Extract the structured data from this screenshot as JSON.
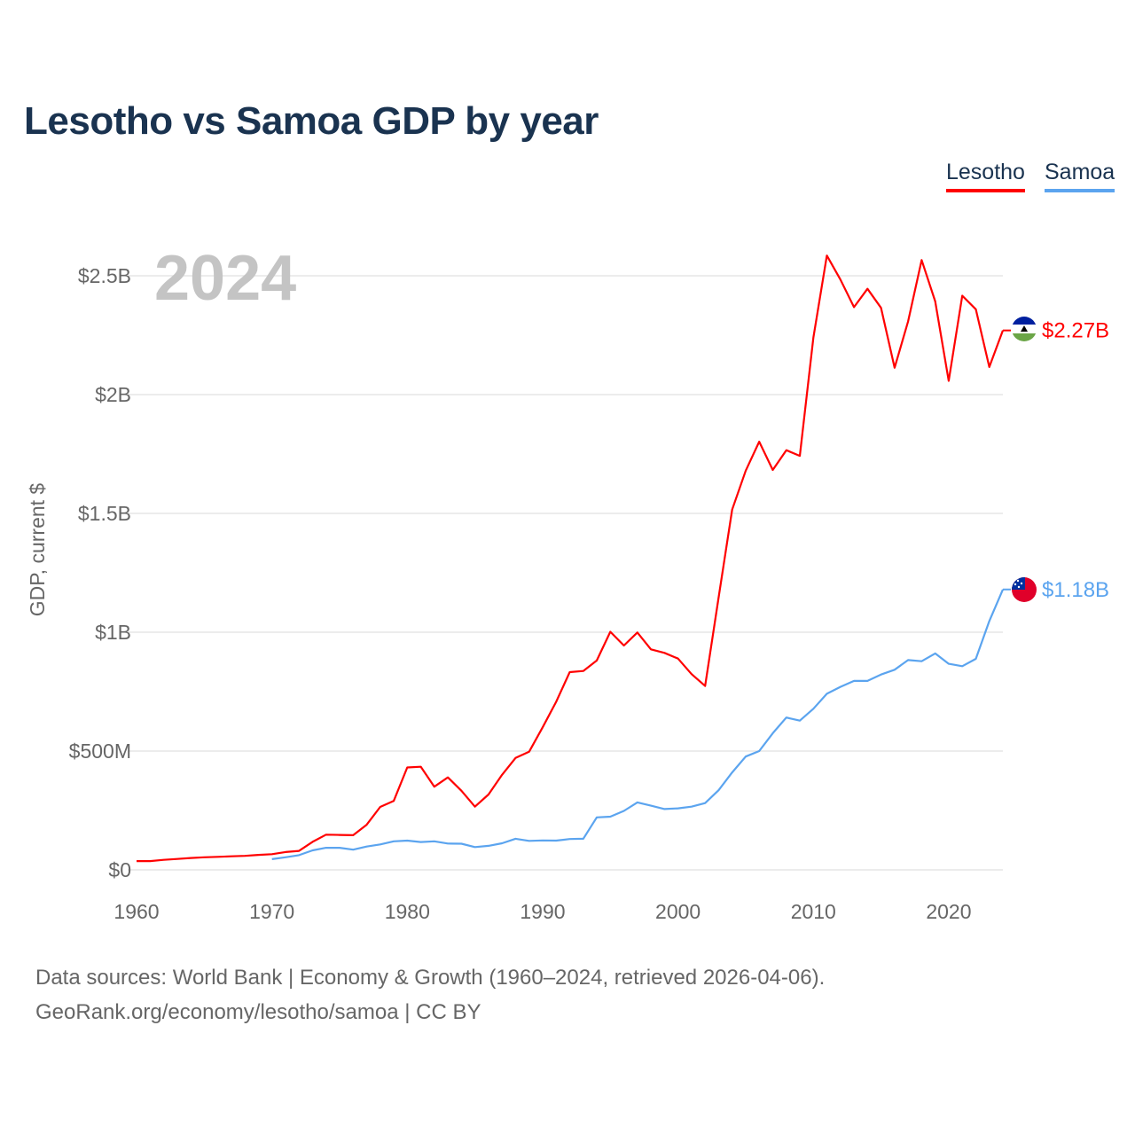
{
  "chart_data": {
    "type": "line",
    "title": "Lesotho vs Samoa GDP by year",
    "ylabel": "GDP, current $",
    "xlabel": "",
    "ylim": [
      0,
      2.5
    ],
    "xlim": [
      1960,
      2024
    ],
    "grid": true,
    "legend_position": "top-right",
    "year_overlay": "2024",
    "y_ticks": [
      {
        "v": 0,
        "label": "$0"
      },
      {
        "v": 0.5,
        "label": "$500M"
      },
      {
        "v": 1,
        "label": "$1B"
      },
      {
        "v": 1.5,
        "label": "$1.5B"
      },
      {
        "v": 2,
        "label": "$2B"
      },
      {
        "v": 2.5,
        "label": "$2.5B"
      }
    ],
    "x_ticks": [
      {
        "v": 1960,
        "label": "1960"
      },
      {
        "v": 1970,
        "label": "1970"
      },
      {
        "v": 1980,
        "label": "1980"
      },
      {
        "v": 1990,
        "label": "1990"
      },
      {
        "v": 2000,
        "label": "2000"
      },
      {
        "v": 2010,
        "label": "2010"
      },
      {
        "v": 2020,
        "label": "2020"
      }
    ],
    "units": "billions USD",
    "series": [
      {
        "name": "Lesotho",
        "color": "#ff0000",
        "end_label": "$2.27B",
        "start_year": 1960,
        "values": [
          0.037,
          0.037,
          0.042,
          0.046,
          0.05,
          0.053,
          0.055,
          0.057,
          0.059,
          0.063,
          0.066,
          0.075,
          0.08,
          0.118,
          0.148,
          0.147,
          0.146,
          0.19,
          0.265,
          0.29,
          0.431,
          0.434,
          0.35,
          0.389,
          0.333,
          0.266,
          0.317,
          0.4,
          0.471,
          0.497,
          0.6,
          0.707,
          0.832,
          0.837,
          0.881,
          1.002,
          0.944,
          0.999,
          0.928,
          0.913,
          0.889,
          0.824,
          0.774,
          1.146,
          1.516,
          1.68,
          1.802,
          1.683,
          1.766,
          1.742,
          2.24,
          2.585,
          2.484,
          2.368,
          2.445,
          2.365,
          2.113,
          2.308,
          2.566,
          2.392,
          2.058,
          2.416,
          2.359,
          2.116,
          2.27
        ]
      },
      {
        "name": "Samoa",
        "color": "#5ba4ef",
        "end_label": "$1.18B",
        "start_year": 1970,
        "values": [
          0.045,
          0.053,
          0.062,
          0.082,
          0.093,
          0.093,
          0.085,
          0.098,
          0.107,
          0.12,
          0.123,
          0.117,
          0.12,
          0.111,
          0.11,
          0.096,
          0.101,
          0.112,
          0.131,
          0.122,
          0.124,
          0.123,
          0.13,
          0.131,
          0.221,
          0.224,
          0.248,
          0.284,
          0.27,
          0.256,
          0.259,
          0.266,
          0.281,
          0.335,
          0.41,
          0.477,
          0.5,
          0.575,
          0.641,
          0.628,
          0.678,
          0.741,
          0.77,
          0.795,
          0.795,
          0.822,
          0.842,
          0.883,
          0.878,
          0.911,
          0.867,
          0.857,
          0.888,
          1.047,
          1.18
        ]
      }
    ]
  },
  "footer": {
    "line1": "Data sources: World Bank | Economy & Growth (1960–2024, retrieved 2026-04-06).",
    "line2": "GeoRank.org/economy/lesotho/samoa | CC BY"
  }
}
